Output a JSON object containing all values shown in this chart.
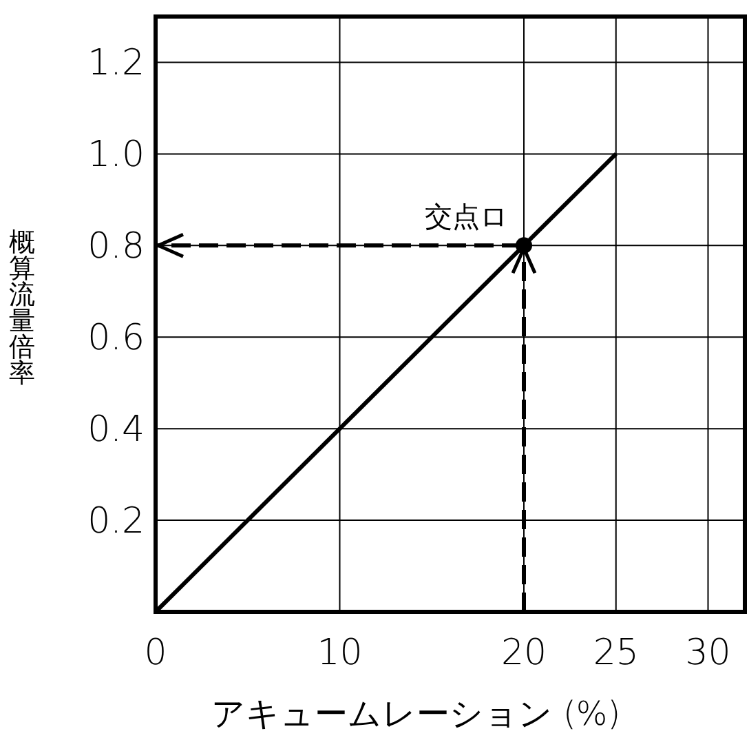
{
  "chart_data": {
    "type": "line",
    "xlabel": "アキュームレーション (%)",
    "ylabel": "概算流量倍率",
    "xlim": [
      0,
      32
    ],
    "ylim": [
      0,
      1.3
    ],
    "xticks": [
      0,
      10,
      20,
      25,
      30
    ],
    "yticks": [
      0.2,
      0.4,
      0.6,
      0.8,
      {
        "value": 1,
        "label": "1.0"
      },
      1.2
    ],
    "grid": true,
    "series": [
      {
        "x": [
          0,
          25
        ],
        "values": [
          0,
          1
        ],
        "color": "#000000",
        "line_style": "solid",
        "marker": "none"
      },
      {
        "type": "scatter",
        "x": [
          20
        ],
        "values": [
          0.8
        ],
        "color": "#000000",
        "marker": "circle"
      }
    ],
    "annotations": [
      {
        "text": "交点ロ",
        "x": 20,
        "y": 0.8
      }
    ]
  }
}
